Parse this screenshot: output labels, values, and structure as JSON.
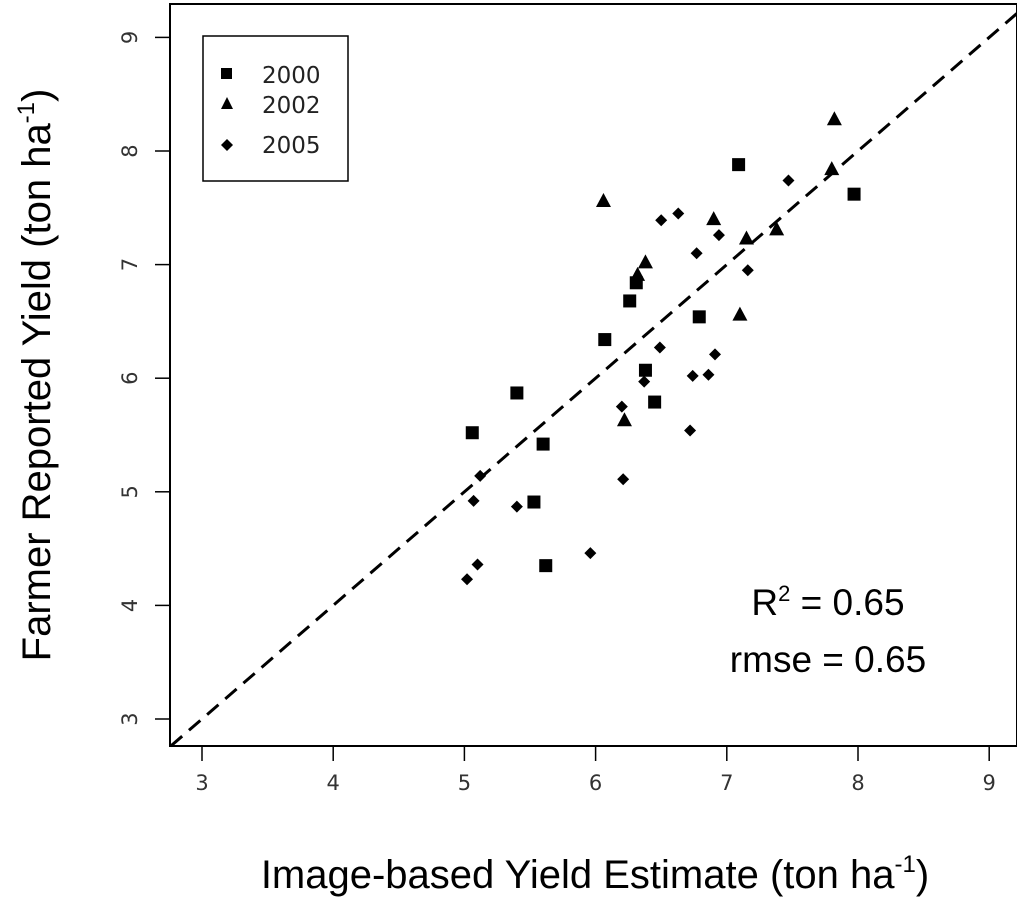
{
  "chart_data": {
    "type": "scatter",
    "title": "",
    "xlabel": "Image-based Yield Estimate (ton ha",
    "xlabel_sup": "-1",
    "xlabel_end": ")",
    "ylabel": "Farmer Reported Yield (ton ha",
    "ylabel_sup": "-1",
    "ylabel_end": ")",
    "xlim": [
      2.75,
      9.2
    ],
    "ylim": [
      2.75,
      9.25
    ],
    "xticks": [
      "3",
      "4",
      "5",
      "6",
      "7",
      "8",
      "9"
    ],
    "yticks": [
      "3",
      "4",
      "5",
      "6",
      "7",
      "8",
      "9"
    ],
    "grid": false,
    "legend_position": "top-left",
    "reference_line": {
      "style": "dashed",
      "slope": 1,
      "intercept": 0
    },
    "series": [
      {
        "name": "2000",
        "marker": "square",
        "points": [
          [
            5.06,
            5.52
          ],
          [
            5.4,
            5.87
          ],
          [
            5.53,
            4.91
          ],
          [
            5.6,
            5.42
          ],
          [
            5.62,
            4.35
          ],
          [
            6.07,
            6.34
          ],
          [
            6.26,
            6.68
          ],
          [
            6.31,
            6.84
          ],
          [
            6.38,
            6.07
          ],
          [
            6.45,
            5.79
          ],
          [
            6.79,
            6.54
          ],
          [
            7.09,
            7.88
          ],
          [
            7.97,
            7.62
          ]
        ]
      },
      {
        "name": "2002",
        "marker": "triangle",
        "points": [
          [
            6.06,
            7.56
          ],
          [
            6.22,
            5.63
          ],
          [
            6.32,
            6.91
          ],
          [
            6.38,
            7.02
          ],
          [
            6.9,
            7.4
          ],
          [
            7.1,
            6.56
          ],
          [
            7.15,
            7.23
          ],
          [
            7.38,
            7.31
          ],
          [
            7.8,
            7.84
          ],
          [
            7.82,
            8.28
          ]
        ]
      },
      {
        "name": "2005",
        "marker": "diamond",
        "points": [
          [
            5.02,
            4.23
          ],
          [
            5.07,
            4.92
          ],
          [
            5.1,
            4.36
          ],
          [
            5.12,
            5.14
          ],
          [
            5.4,
            4.87
          ],
          [
            5.96,
            4.46
          ],
          [
            6.2,
            5.75
          ],
          [
            6.21,
            5.11
          ],
          [
            6.37,
            5.97
          ],
          [
            6.49,
            6.27
          ],
          [
            6.5,
            7.39
          ],
          [
            6.63,
            7.45
          ],
          [
            6.72,
            5.54
          ],
          [
            6.74,
            6.02
          ],
          [
            6.77,
            7.1
          ],
          [
            6.86,
            6.03
          ],
          [
            6.91,
            6.21
          ],
          [
            6.94,
            7.26
          ],
          [
            7.16,
            6.95
          ],
          [
            7.47,
            7.74
          ]
        ]
      }
    ],
    "annotations": {
      "r2_prefix": "R",
      "r2_sup": "2",
      "r2_value": " = 0.65",
      "rmse": "rmse = 0.65"
    }
  }
}
